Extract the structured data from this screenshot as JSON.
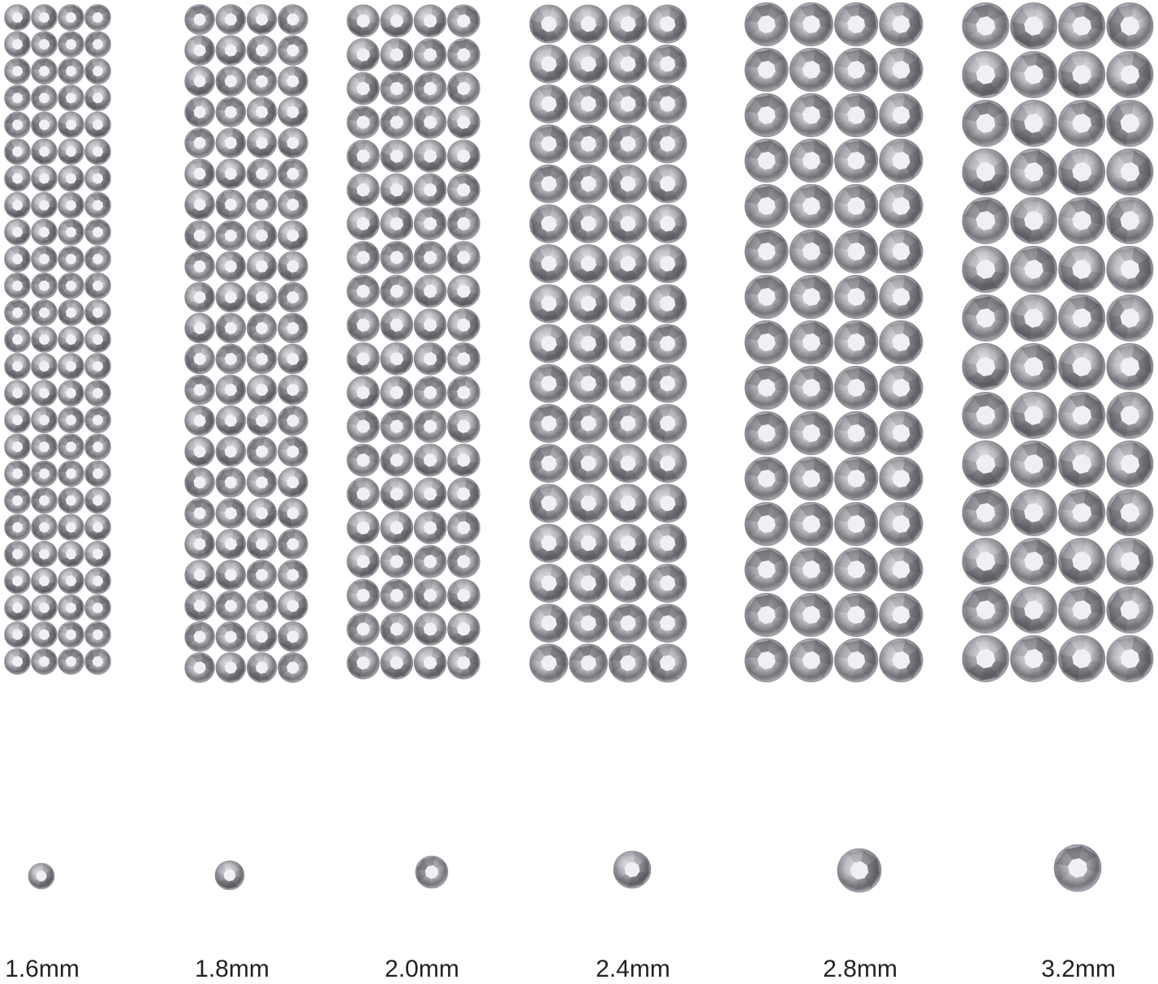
{
  "sizes": [
    {
      "label": "1.6mm"
    },
    {
      "label": "1.8mm"
    },
    {
      "label": "2.0mm"
    },
    {
      "label": "2.4mm"
    },
    {
      "label": "2.8mm"
    },
    {
      "label": "3.2mm"
    }
  ],
  "colors": {
    "gem_dark": "#6e6e74",
    "gem_mid": "#b4b4ba",
    "gem_light": "#f2f2f6",
    "background": "#ffffff"
  }
}
